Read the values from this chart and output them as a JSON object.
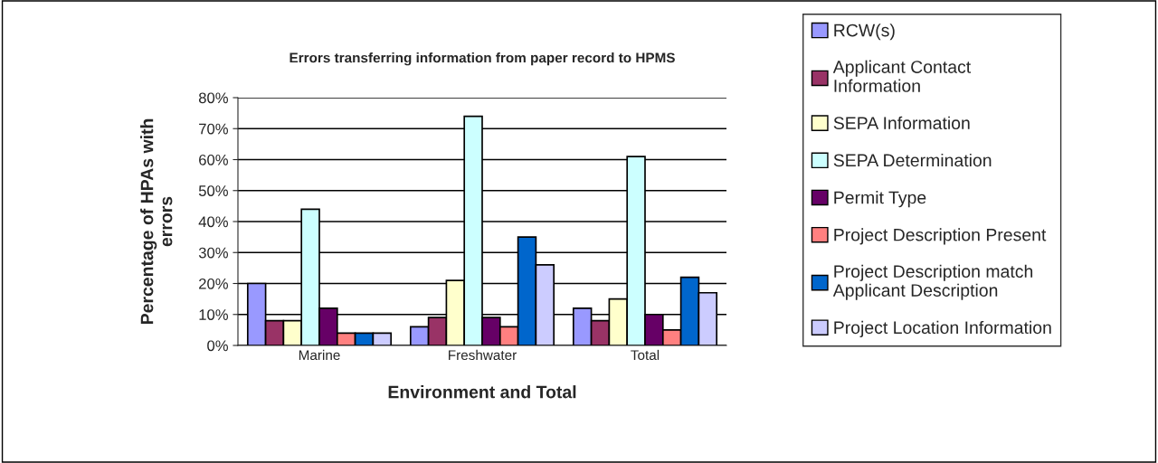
{
  "chart_data": {
    "type": "bar",
    "title": "Errors transferring information from paper record to HPMS",
    "xlabel": "Environment and Total",
    "ylabel": "Percentage of HPAs with\nerrors",
    "categories": [
      "Marine",
      "Freshwater",
      "Total"
    ],
    "series": [
      {
        "name": "RCW(s)",
        "color": "#9999ff",
        "values": [
          20,
          6,
          12
        ]
      },
      {
        "name": "Applicant Contact\nInformation",
        "color": "#993366",
        "values": [
          8,
          9,
          8
        ]
      },
      {
        "name": "SEPA Information",
        "color": "#ffffcc",
        "values": [
          8,
          21,
          15
        ]
      },
      {
        "name": "SEPA Determination",
        "color": "#ccffff",
        "values": [
          44,
          74,
          61
        ]
      },
      {
        "name": "Permit Type",
        "color": "#660066",
        "values": [
          12,
          9,
          10
        ]
      },
      {
        "name": "Project Description Present",
        "color": "#ff8080",
        "values": [
          4,
          6,
          5
        ]
      },
      {
        "name": "Project Description match\nApplicant Description",
        "color": "#0066cc",
        "values": [
          4,
          35,
          22
        ]
      },
      {
        "name": "Project Location Information",
        "color": "#ccccff",
        "values": [
          4,
          26,
          17
        ]
      }
    ],
    "ylim": [
      0,
      80
    ],
    "yticks": [
      {
        "value": 0,
        "label": "0%"
      },
      {
        "value": 10,
        "label": "10%"
      },
      {
        "value": 20,
        "label": "20%"
      },
      {
        "value": 30,
        "label": "30%"
      },
      {
        "value": 40,
        "label": "40%"
      },
      {
        "value": 50,
        "label": "50%"
      },
      {
        "value": 60,
        "label": "60%"
      },
      {
        "value": 70,
        "label": "70%"
      },
      {
        "value": 80,
        "label": "80%"
      }
    ],
    "grid": "y",
    "legend": "right"
  }
}
